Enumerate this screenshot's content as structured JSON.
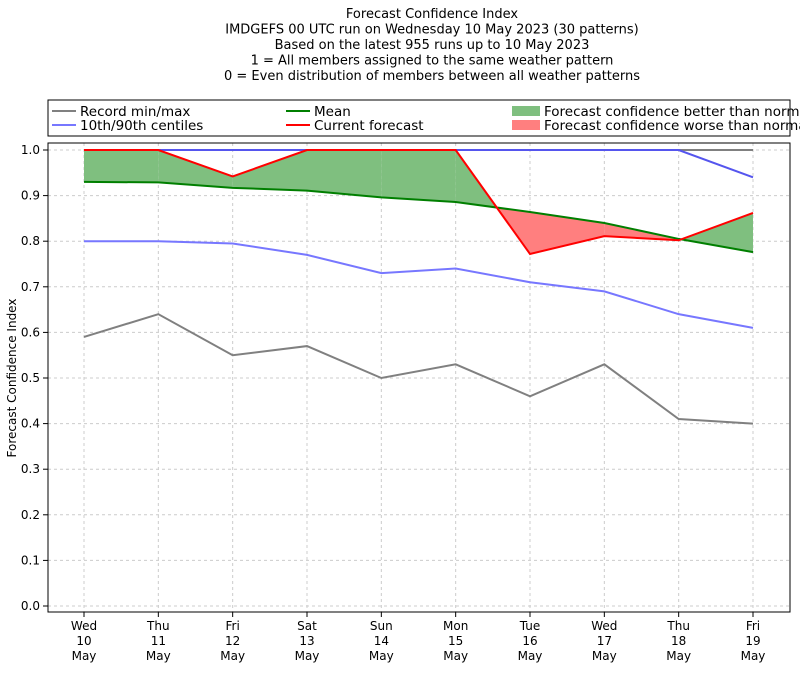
{
  "chart_data": {
    "type": "line",
    "title_lines": [
      "Forecast Confidence Index",
      "IMDGEFS 00 UTC run on Wednesday 10 May 2023 (30 patterns)",
      "Based on the latest 955 runs up to 10 May 2023",
      "1 = All members assigned to the same weather pattern",
      "0 = Even distribution of members between all weather patterns"
    ],
    "ylabel": "Forecast Confidence Index",
    "ylim": [
      0,
      1
    ],
    "yticks": [
      "0.0",
      "0.1",
      "0.2",
      "0.3",
      "0.4",
      "0.5",
      "0.6",
      "0.7",
      "0.8",
      "0.9",
      "1.0"
    ],
    "categories": [
      [
        "Wed",
        "10",
        "May"
      ],
      [
        "Thu",
        "11",
        "May"
      ],
      [
        "Fri",
        "12",
        "May"
      ],
      [
        "Sat",
        "13",
        "May"
      ],
      [
        "Sun",
        "14",
        "May"
      ],
      [
        "Mon",
        "15",
        "May"
      ],
      [
        "Tue",
        "16",
        "May"
      ],
      [
        "Wed",
        "17",
        "May"
      ],
      [
        "Thu",
        "18",
        "May"
      ],
      [
        "Fri",
        "19",
        "May"
      ]
    ],
    "grid": true,
    "legend": [
      {
        "label": "Record min/max",
        "color": "#808080",
        "kind": "line"
      },
      {
        "label": "10th/90th centiles",
        "color": "#7777ff",
        "kind": "line"
      },
      {
        "label": "Mean",
        "color": "#007f00",
        "kind": "line"
      },
      {
        "label": "Current forecast",
        "color": "#ff0000",
        "kind": "line"
      },
      {
        "label": "Forecast confidence better than normal",
        "color": "#7fbf7f",
        "kind": "patch"
      },
      {
        "label": "Forecast confidence worse than normal",
        "color": "#ff7f7f",
        "kind": "patch"
      }
    ],
    "series": {
      "record_min": [
        0.59,
        0.64,
        0.55,
        0.57,
        0.5,
        0.53,
        0.46,
        0.53,
        0.41,
        0.4
      ],
      "record_max": [
        1,
        1,
        1,
        1,
        1,
        1,
        1,
        1,
        1,
        1
      ],
      "p10": [
        0.8,
        0.8,
        0.795,
        0.77,
        0.73,
        0.74,
        0.71,
        0.69,
        0.64,
        0.61
      ],
      "p90": [
        1,
        1,
        1,
        1,
        1,
        1,
        1,
        1,
        1,
        0.94
      ],
      "mean": [
        0.93,
        0.929,
        0.917,
        0.911,
        0.896,
        0.886,
        0.864,
        0.84,
        0.805,
        0.776
      ],
      "current": [
        1,
        1,
        0.942,
        1,
        1,
        1,
        0.772,
        0.811,
        0.802,
        0.862
      ]
    }
  }
}
